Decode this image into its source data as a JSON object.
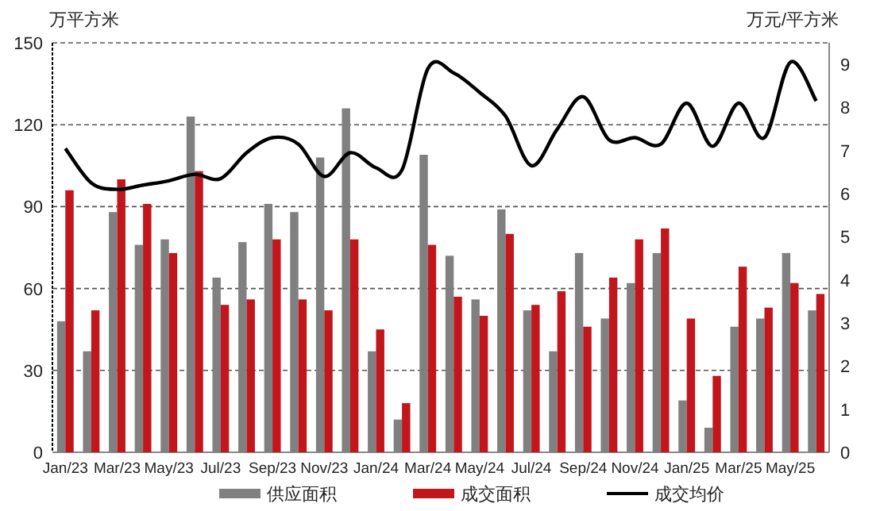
{
  "chart_data": {
    "type": "bar",
    "categories": [
      "Jan/23",
      null,
      "Mar/23",
      null,
      "May/23",
      null,
      "Jul/23",
      null,
      "Sep/23",
      null,
      "Nov/23",
      null,
      "Jan/24",
      null,
      "Mar/24",
      null,
      "May/24",
      null,
      "Jul/24",
      null,
      "Sep/24",
      null,
      "Nov/24",
      null,
      "Jan/25",
      null,
      "Mar/25",
      null,
      "May/25",
      null
    ],
    "series": [
      {
        "name": "供应面积",
        "color": "#808080",
        "values": [
          48,
          37,
          88,
          76,
          78,
          123,
          64,
          77,
          91,
          88,
          108,
          126,
          37,
          12,
          109,
          72,
          56,
          89,
          52,
          37,
          73,
          49,
          62,
          73,
          19,
          9,
          46,
          49,
          73,
          52
        ]
      },
      {
        "name": "成交面积",
        "color": "#c0161c",
        "values": [
          96,
          52,
          100,
          91,
          73,
          103,
          54,
          56,
          78,
          56,
          52,
          78,
          45,
          18,
          76,
          57,
          50,
          80,
          54,
          59,
          46,
          64,
          78,
          82,
          49,
          28,
          68,
          53,
          62,
          58
        ]
      },
      {
        "name": "成交均价",
        "type": "line",
        "axis": "y2",
        "color": "#000000",
        "values": [
          7.05,
          6.25,
          6.1,
          6.2,
          6.3,
          6.45,
          6.35,
          6.95,
          7.3,
          7.15,
          6.4,
          6.95,
          6.6,
          6.55,
          8.9,
          8.8,
          8.35,
          7.8,
          6.65,
          7.5,
          8.25,
          7.25,
          7.3,
          7.15,
          8.1,
          7.1,
          8.1,
          7.3,
          9.05,
          8.15
        ]
      }
    ],
    "ylabel": "万平方米",
    "y2label": "万元/平方米",
    "ylim": [
      0,
      150
    ],
    "yticks": [
      0,
      30,
      60,
      90,
      120,
      150
    ],
    "y2lim": [
      0,
      9.5
    ],
    "y2ticks": [
      0,
      1,
      2,
      3,
      4,
      5,
      6,
      7,
      8,
      9
    ],
    "grid": "y",
    "legend": "bottom"
  }
}
